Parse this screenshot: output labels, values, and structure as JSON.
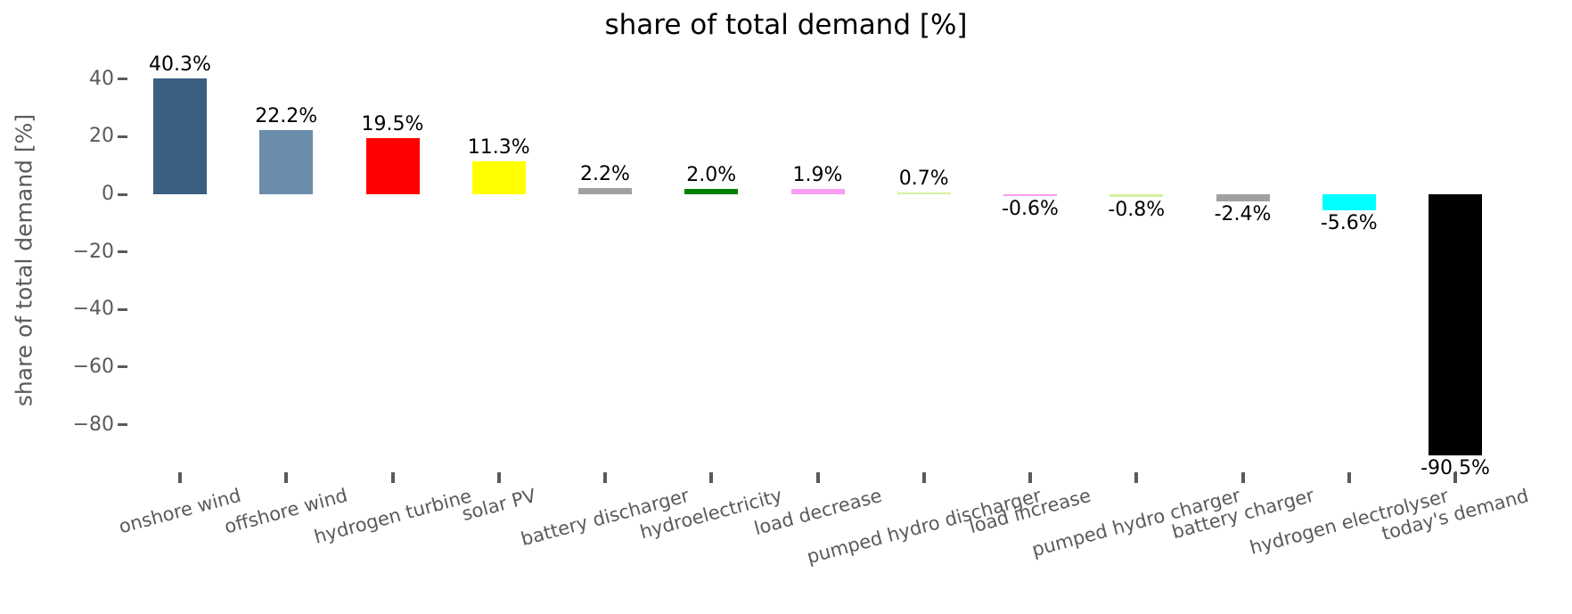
{
  "figure": {
    "background": "#ffffff",
    "axis_text_color": "#5a5a5a",
    "value_label_color": "#000000",
    "title_color": "#000000"
  },
  "chart_data": {
    "type": "bar",
    "title": "share of total demand [%]",
    "xlabel": "",
    "ylabel": "share of total demand [%]",
    "ylim": [
      -96,
      47
    ],
    "grid": false,
    "legend": "none",
    "yticks": [
      {
        "value": 40,
        "label": "40"
      },
      {
        "value": 20,
        "label": "20"
      },
      {
        "value": 0,
        "label": "0"
      },
      {
        "value": -20,
        "label": "−20"
      },
      {
        "value": -40,
        "label": "−40"
      },
      {
        "value": -60,
        "label": "−60"
      },
      {
        "value": -80,
        "label": "−80"
      }
    ],
    "categories": [
      "onshore wind",
      "offshore wind",
      "hydrogen turbine",
      "solar PV",
      "battery discharger",
      "hydroelectricity",
      "load decrease",
      "pumped hydro discharger",
      "load increase",
      "pumped hydro charger",
      "battery charger",
      "hydrogen electrolyser",
      "today's demand"
    ],
    "values": [
      40.3,
      22.2,
      19.5,
      11.3,
      2.2,
      2.0,
      1.9,
      0.7,
      -0.6,
      -0.8,
      -2.4,
      -5.6,
      -90.5
    ],
    "value_labels": [
      "40.3%",
      "22.2%",
      "19.5%",
      "11.3%",
      "2.2%",
      "2.0%",
      "1.9%",
      "0.7%",
      "-0.6%",
      "-0.8%",
      "-2.4%",
      "-5.6%",
      "-90.5%"
    ],
    "colors": [
      "#3A5F80",
      "#6B8DAC",
      "#FF0000",
      "#FFFF00",
      "#A0A0A0",
      "#008000",
      "#FA9EF2",
      "#D6EFA0",
      "#FA9EF2",
      "#D6EFA0",
      "#A0A0A0",
      "#00FFFF",
      "#000000"
    ]
  }
}
